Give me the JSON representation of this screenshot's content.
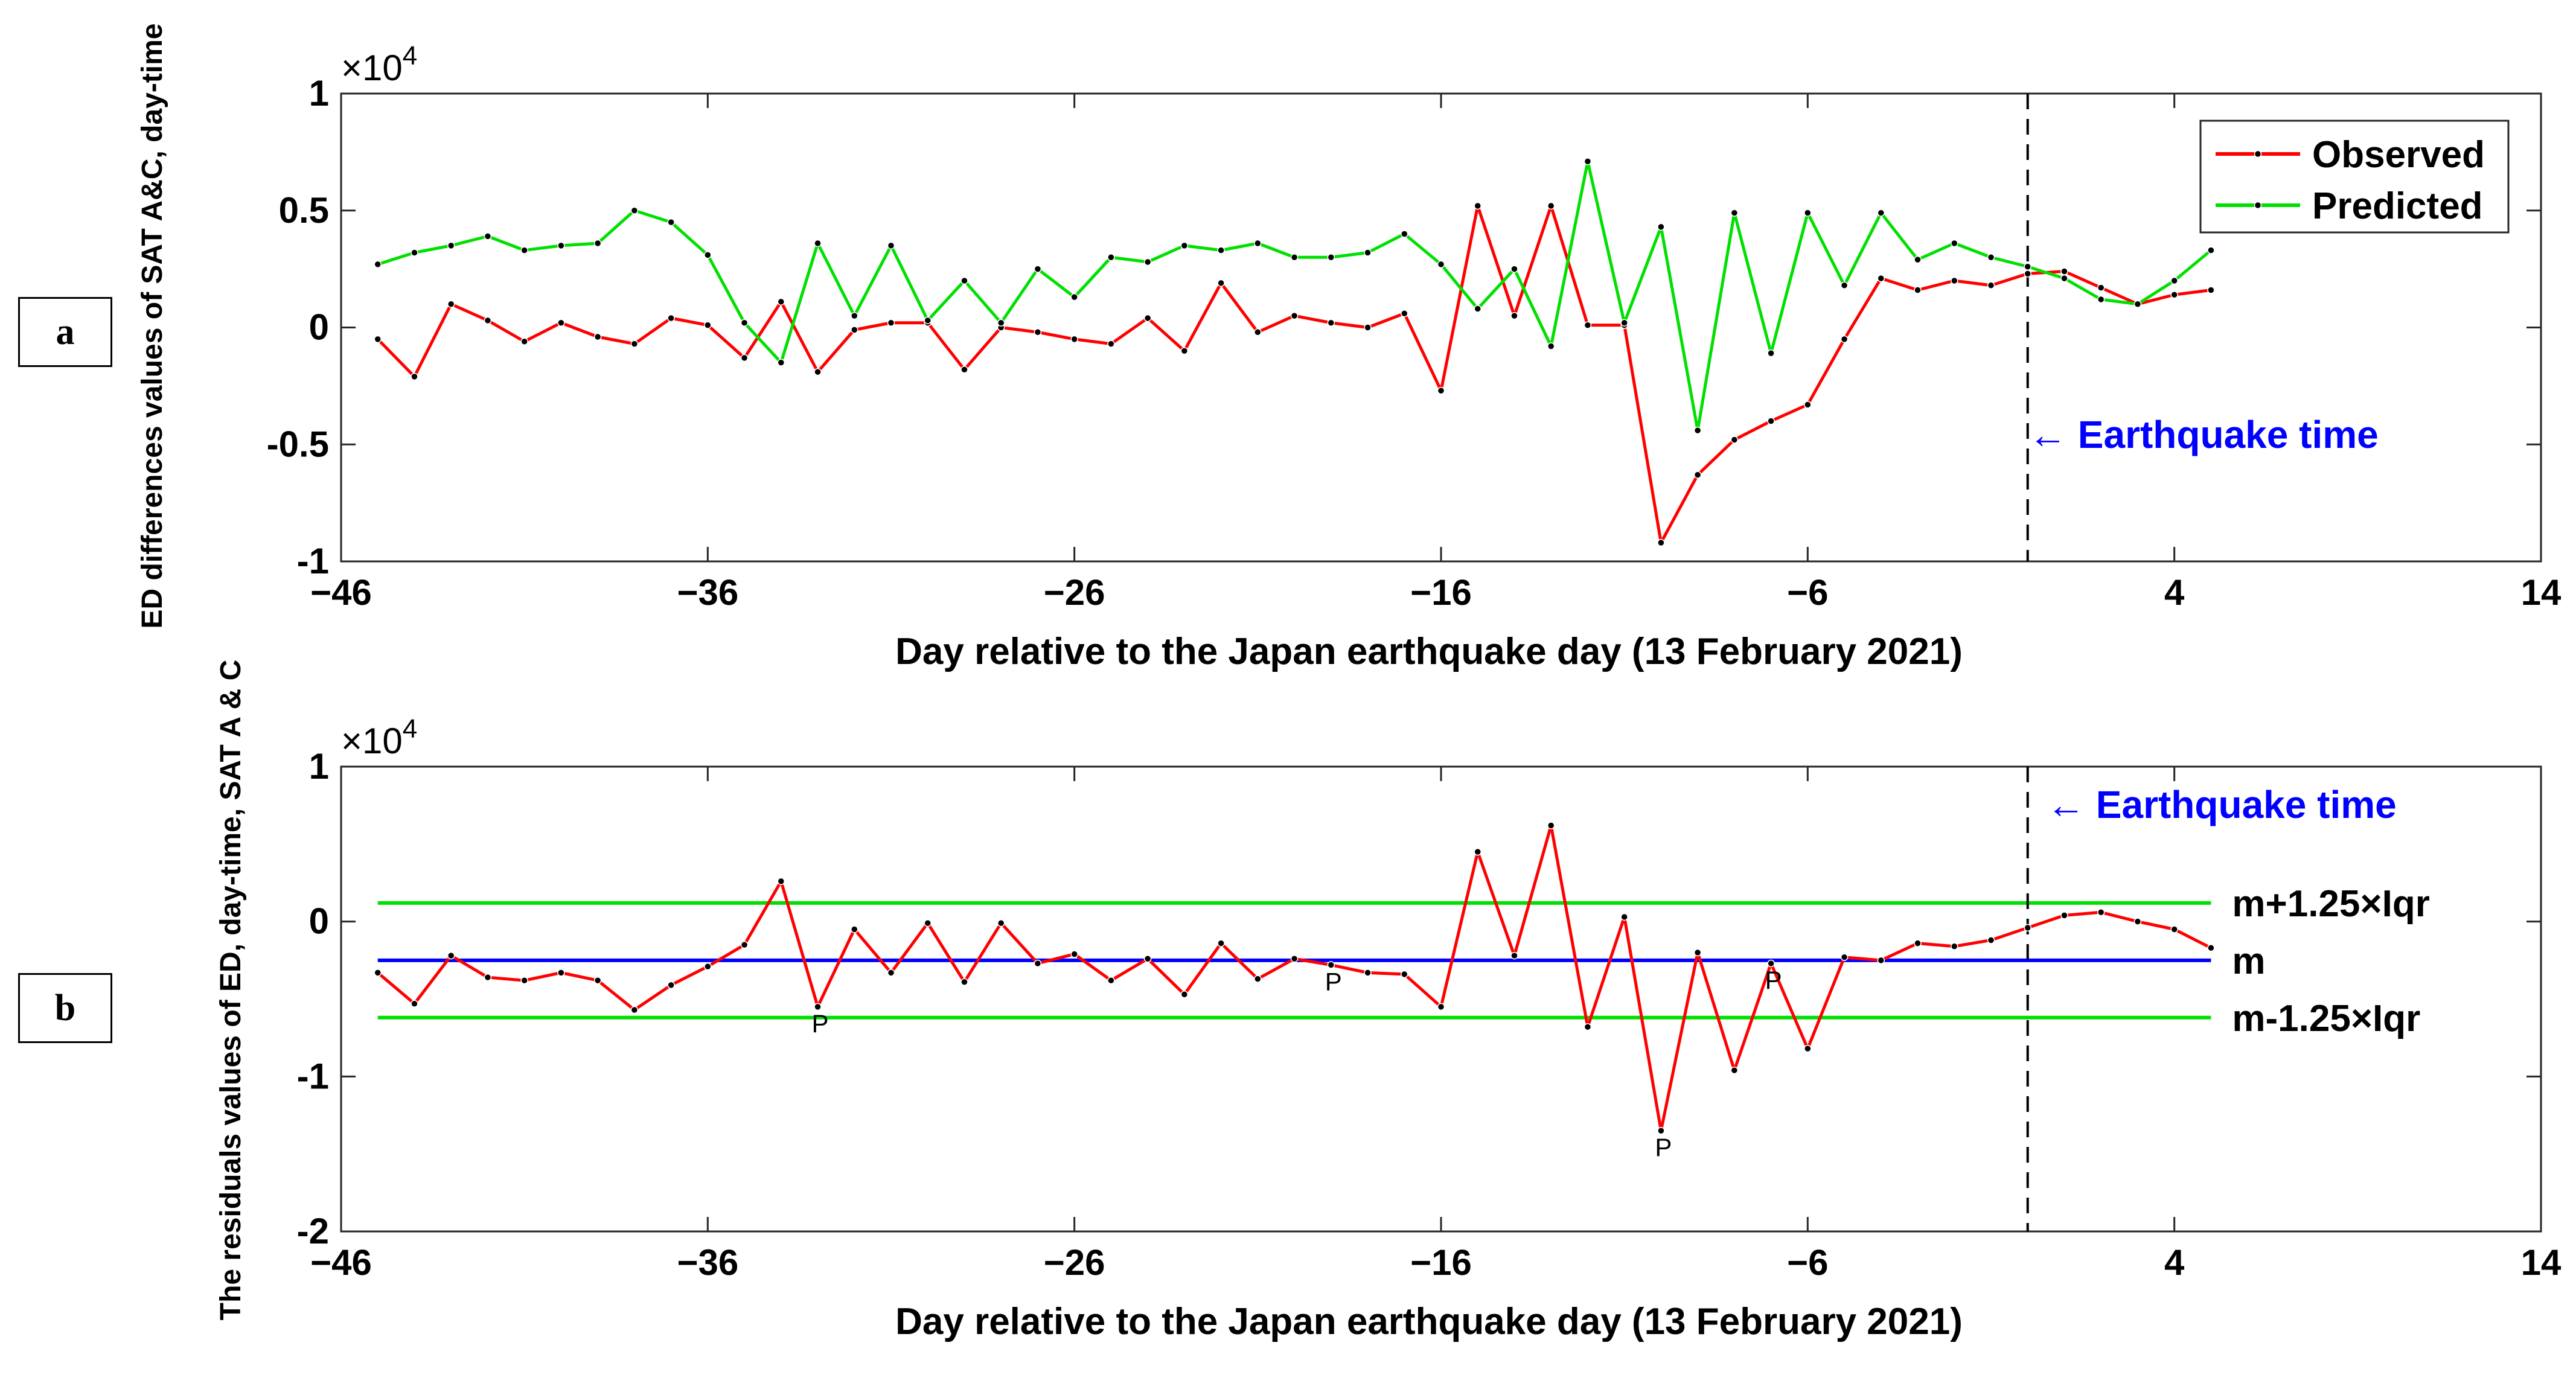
{
  "panels": [
    {
      "label": "a"
    },
    {
      "label": "b"
    }
  ],
  "colors": {
    "observed": "#ff0000",
    "predicted": "#00e000",
    "median": "#0000ff",
    "bounds": "#00e000",
    "annotation": "#0000ff",
    "marker": "#000000"
  },
  "chart_data": [
    {
      "type": "line",
      "ylabel": "ED differences values of SAT A&C, day-time",
      "xlabel": "Day relative to the Japan earthquake day (13 February 2021)",
      "exponent_label": "×10",
      "exponent_power": "4",
      "xlim": [
        -46,
        14
      ],
      "ylim": [
        -1,
        1
      ],
      "xticks": [
        -46,
        -36,
        -26,
        -16,
        -6,
        4,
        14
      ],
      "xtick_labels": [
        "−46",
        "−36",
        "−26",
        "−16",
        "−6",
        "4",
        "14"
      ],
      "yticks": [
        -1,
        -0.5,
        0,
        0.5,
        1
      ],
      "ytick_labels": [
        "-1",
        "-0.5",
        "0",
        "0.5",
        "1"
      ],
      "legend_position": "top-right",
      "grid": false,
      "event_line_x": 0,
      "annotation": "←  Earthquake time",
      "x": [
        -45,
        -44,
        -43,
        -42,
        -41,
        -40,
        -39,
        -38,
        -37,
        -36,
        -35,
        -34,
        -33,
        -32,
        -31,
        -30,
        -29,
        -28,
        -27,
        -26,
        -25,
        -24,
        -23,
        -22,
        -21,
        -20,
        -19,
        -18,
        -17,
        -16,
        -15,
        -14,
        -13,
        -12,
        -11,
        -10,
        -9,
        -8,
        -7,
        -6,
        -5,
        -4,
        -3,
        -2,
        -1,
        0,
        1,
        2,
        3,
        4,
        5
      ],
      "series": [
        {
          "name": "Observed",
          "color": "#ff0000",
          "values": [
            -0.05,
            -0.21,
            0.1,
            0.03,
            -0.06,
            0.02,
            -0.04,
            -0.07,
            0.04,
            0.01,
            -0.13,
            0.11,
            -0.19,
            -0.01,
            0.02,
            0.02,
            -0.18,
            0.0,
            -0.02,
            -0.05,
            -0.07,
            0.04,
            -0.1,
            0.19,
            -0.02,
            0.05,
            0.02,
            0.0,
            0.06,
            -0.27,
            0.52,
            0.05,
            0.52,
            0.01,
            0.01,
            -0.92,
            -0.63,
            -0.48,
            -0.4,
            -0.33,
            -0.05,
            0.21,
            0.16,
            0.2,
            0.18,
            0.23,
            0.24,
            0.17,
            0.1,
            0.14,
            0.16
          ]
        },
        {
          "name": "Predicted",
          "color": "#00e000",
          "values": [
            0.27,
            0.32,
            0.35,
            0.39,
            0.33,
            0.35,
            0.36,
            0.5,
            0.45,
            0.31,
            0.02,
            -0.15,
            0.36,
            0.05,
            0.35,
            0.03,
            0.2,
            0.02,
            0.25,
            0.13,
            0.3,
            0.28,
            0.35,
            0.33,
            0.36,
            0.3,
            0.3,
            0.32,
            0.4,
            0.27,
            0.08,
            0.25,
            -0.08,
            0.71,
            0.02,
            0.43,
            -0.44,
            0.49,
            -0.11,
            0.49,
            0.18,
            0.49,
            0.29,
            0.36,
            0.3,
            0.26,
            0.21,
            0.12,
            0.1,
            0.2,
            0.33
          ]
        }
      ]
    },
    {
      "type": "line",
      "ylabel": "The residuals values of ED, day-time, SAT A & C",
      "xlabel": "Day relative to the Japan earthquake day (13 February 2021)",
      "exponent_label": "×10",
      "exponent_power": "4",
      "xlim": [
        -46,
        14
      ],
      "ylim": [
        -2,
        1
      ],
      "xticks": [
        -46,
        -36,
        -26,
        -16,
        -6,
        4,
        14
      ],
      "xtick_labels": [
        "−46",
        "−36",
        "−26",
        "−16",
        "−6",
        "4",
        "14"
      ],
      "yticks": [
        -2,
        -1,
        0,
        1
      ],
      "ytick_labels": [
        "-2",
        "-1",
        "0",
        "1"
      ],
      "grid": false,
      "event_line_x": 0,
      "annotation": "←  Earthquake time",
      "x": [
        -45,
        -44,
        -43,
        -42,
        -41,
        -40,
        -39,
        -38,
        -37,
        -36,
        -35,
        -34,
        -33,
        -32,
        -31,
        -30,
        -29,
        -28,
        -27,
        -26,
        -25,
        -24,
        -23,
        -22,
        -21,
        -20,
        -19,
        -18,
        -17,
        -16,
        -15,
        -14,
        -13,
        -12,
        -11,
        -10,
        -9,
        -8,
        -7,
        -6,
        -5,
        -4,
        -3,
        -2,
        -1,
        0,
        1,
        2,
        3,
        4,
        5
      ],
      "series": [
        {
          "name": "Residuals",
          "color": "#ff0000",
          "values": [
            -0.33,
            -0.53,
            -0.22,
            -0.36,
            -0.38,
            -0.33,
            -0.38,
            -0.57,
            -0.41,
            -0.29,
            -0.15,
            0.26,
            -0.55,
            -0.05,
            -0.33,
            -0.01,
            -0.39,
            -0.01,
            -0.27,
            -0.21,
            -0.38,
            -0.24,
            -0.47,
            -0.14,
            -0.37,
            -0.24,
            -0.28,
            -0.33,
            -0.34,
            -0.55,
            0.45,
            -0.22,
            0.62,
            -0.68,
            0.03,
            -1.35,
            -0.2,
            -0.96,
            -0.27,
            -0.82,
            -0.23,
            -0.25,
            -0.14,
            -0.16,
            -0.12,
            -0.04,
            0.04,
            0.06,
            0.0,
            -0.05,
            -0.17
          ]
        }
      ],
      "reference_lines": [
        {
          "label": "m+1.25×Iqr",
          "y": 0.12,
          "color": "#00e000"
        },
        {
          "label": "m",
          "y": -0.25,
          "color": "#0000ff"
        },
        {
          "label": "m-1.25×Iqr",
          "y": -0.62,
          "color": "#00e000"
        }
      ],
      "outlier_marker": "P",
      "outliers": [
        {
          "x": -33,
          "y": -0.55
        },
        {
          "x": -19,
          "y": -0.28
        },
        {
          "x": -10,
          "y": -1.35
        },
        {
          "x": -7,
          "y": -0.27
        }
      ]
    }
  ]
}
